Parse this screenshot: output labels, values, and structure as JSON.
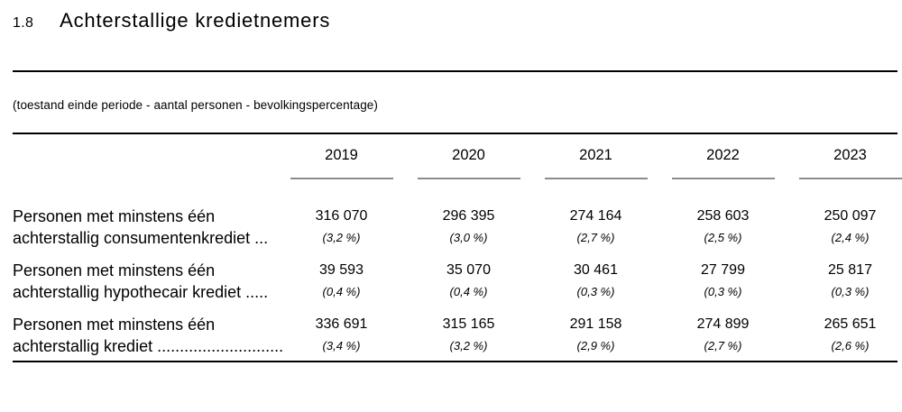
{
  "header": {
    "section_number": "1.8",
    "title": "Achterstallige kredietnemers",
    "subtitle": "(toestand einde periode - aantal personen - bevolkingspercentage)"
  },
  "table": {
    "years": [
      "2019",
      "2020",
      "2021",
      "2022",
      "2023"
    ],
    "rows": [
      {
        "label_line1": "Personen met minstens één",
        "label_line2": "achterstallig consumentenkrediet ...",
        "values": [
          "316 070",
          "296 395",
          "274 164",
          "258 603",
          "250 097"
        ],
        "percentages": [
          "(3,2 %)",
          "(3,0 %)",
          "(2,7 %)",
          "(2,5 %)",
          "(2,4 %)"
        ]
      },
      {
        "label_line1": "Personen met minstens één",
        "label_line2": "achterstallig hypothecair krediet .....",
        "values": [
          "39 593",
          "35 070",
          "30 461",
          "27 799",
          "25 817"
        ],
        "percentages": [
          "(0,4 %)",
          "(0,4 %)",
          "(0,3 %)",
          "(0,3 %)",
          "(0,3 %)"
        ]
      },
      {
        "label_line1": "Personen met minstens één",
        "label_line2": "achterstallig krediet ............................",
        "values": [
          "336 691",
          "315 165",
          "291 158",
          "274 899",
          "265 651"
        ],
        "percentages": [
          "(3,4 %)",
          "(3,2 %)",
          "(2,9 %)",
          "(2,7 %)",
          "(2,6 %)"
        ]
      }
    ]
  },
  "colors": {
    "text": "#000000",
    "rule": "#000000",
    "year_underline": "#8c8c8c",
    "background": "#ffffff"
  }
}
